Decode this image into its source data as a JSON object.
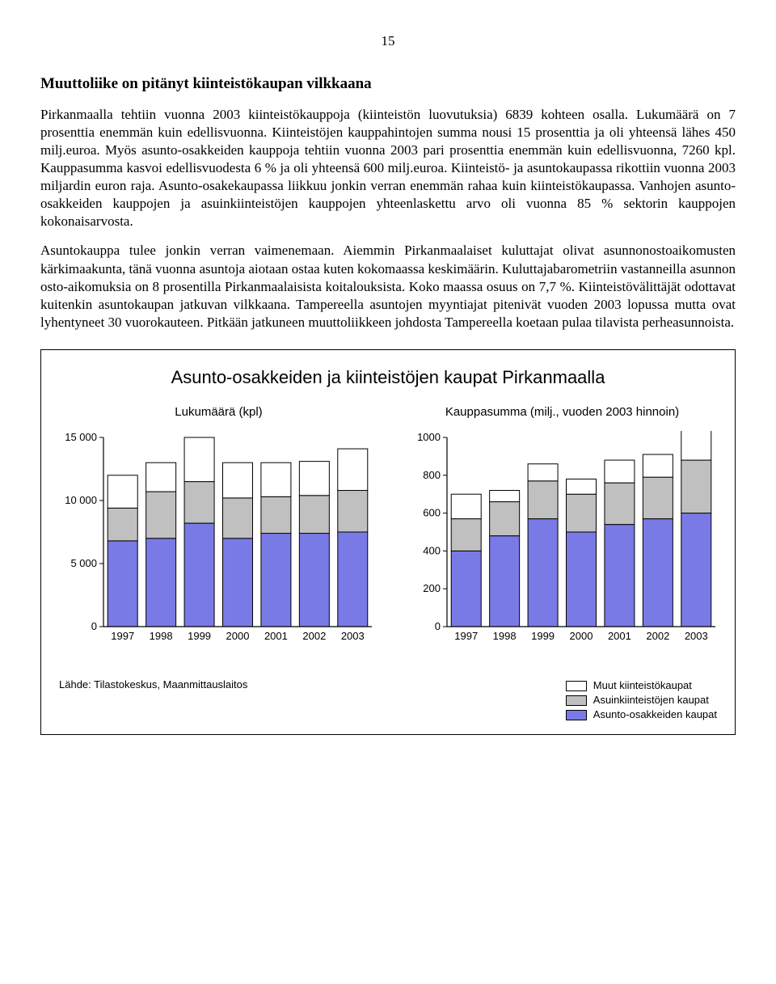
{
  "page_number": "15",
  "heading": "Muuttoliike on pitänyt kiinteistökaupan vilkkaana",
  "paragraphs": [
    "Pirkanmaalla tehtiin vuonna 2003 kiinteistökauppoja (kiinteistön luovutuksia) 6839 kohteen osalla. Lukumäärä on 7 prosenttia enemmän kuin edellisvuonna. Kiinteistöjen kauppahintojen summa nousi 15 prosenttia ja oli yhteensä lähes 450 milj.euroa. Myös asunto-osakkeiden kauppoja tehtiin vuonna 2003 pari prosenttia enemmän kuin edellisvuonna, 7260 kpl. Kauppasumma kasvoi edellisvuodesta 6 % ja oli yhteensä 600 milj.euroa. Kiinteistö- ja asuntokaupassa rikottiin vuonna 2003 miljardin euron raja. Asunto-osakekaupassa liikkuu jonkin verran enemmän rahaa kuin kiinteistökaupassa. Vanhojen asunto-osakkeiden kauppojen ja asuinkiinteistöjen kauppojen yhteenlaskettu arvo oli vuonna 85 % sektorin kauppojen kokonaisarvosta.",
    "Asuntokauppa tulee jonkin verran vaimenemaan. Aiemmin Pirkanmaalaiset kuluttajat olivat asunnonostoaikomusten kärkimaakunta, tänä vuonna asuntoja aiotaan ostaa kuten kokomaassa keskimäärin. Kuluttajabarometriin vastanneilla asunnon osto-aikomuksia on 8 prosentilla Pirkanmaalaisista koitalouksista. Koko maassa osuus on 7,7 %. Kiinteistövälittäjät odottavat kuitenkin asuntokaupan jatkuvan vilkkaana. Tampereella asuntojen myyntiajat pitenivät vuoden 2003 lopussa mutta ovat lyhentyneet 30 vuorokauteen. Pitkään jatkuneen muuttoliikkeen johdosta Tampereella koetaan pulaa tilavista perheasunnoista."
  ],
  "chart": {
    "title": "Asunto-osakkeiden ja kiinteistöjen kaupat Pirkanmaalla",
    "colors": {
      "series_bottom": "#7a7ae6",
      "series_mid": "#c0c0c0",
      "series_top": "#ffffff",
      "axis": "#000000",
      "stroke": "#000000"
    },
    "categories": [
      "1997",
      "1998",
      "1999",
      "2000",
      "2001",
      "2002",
      "2003"
    ],
    "left": {
      "caption": "Lukumäärä (kpl)",
      "ymax": 15000,
      "yticks": [
        0,
        5000,
        10000,
        15000
      ],
      "ytick_labels": [
        "0",
        "5 000",
        "10 000",
        "15 000"
      ],
      "series_bottom": [
        6800,
        7000,
        8200,
        7000,
        7400,
        7400,
        7500
      ],
      "series_mid": [
        2600,
        3700,
        3300,
        3200,
        2900,
        3000,
        3300
      ],
      "series_top": [
        2600,
        2300,
        3500,
        2800,
        2700,
        2700,
        3300
      ]
    },
    "right": {
      "caption": "Kauppasumma (milj., vuoden 2003 hinnoin)",
      "ymax": 1000,
      "yticks": [
        0,
        200,
        400,
        600,
        800,
        1000
      ],
      "ytick_labels": [
        "0",
        "200",
        "400",
        "600",
        "800",
        "1000"
      ],
      "series_bottom": [
        400,
        480,
        570,
        500,
        540,
        570,
        600
      ],
      "series_mid": [
        170,
        180,
        200,
        200,
        220,
        220,
        280
      ],
      "series_top": [
        130,
        60,
        90,
        80,
        120,
        120,
        170
      ]
    },
    "legend": [
      {
        "label": "Muut kiinteistökaupat",
        "color": "#ffffff"
      },
      {
        "label": "Asuinkiinteistöjen kaupat",
        "color": "#c0c0c0"
      },
      {
        "label": "Asunto-osakkeiden kaupat",
        "color": "#7a7ae6"
      }
    ],
    "source": "Lähde: Tilastokeskus, Maanmittauslaitos"
  }
}
